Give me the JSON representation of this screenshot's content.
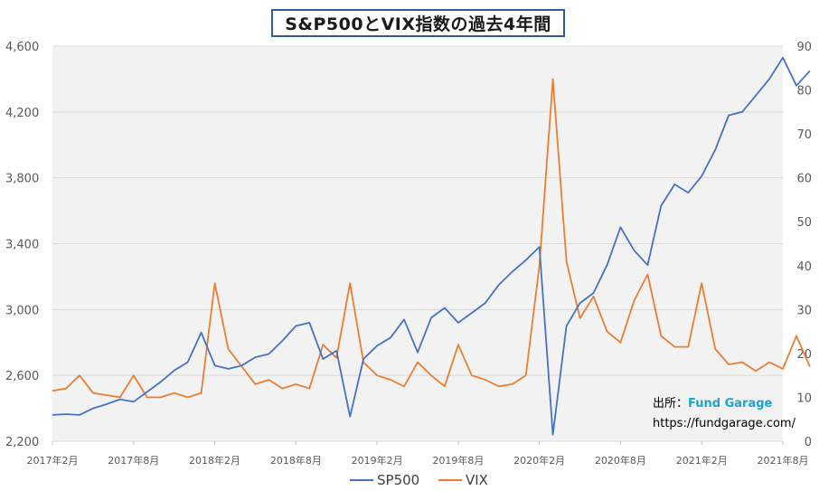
{
  "title": "S&P500とVIX指数の過去4年間",
  "source": {
    "label": "出所：",
    "brand": "Fund Garage",
    "url": "https://fundgarage.com/"
  },
  "colors": {
    "sp500": "#4472c4",
    "vix": "#ed7d31",
    "plot_bg": "#f2f2f2",
    "grid": "#d9d9d9"
  },
  "chart_data": {
    "type": "line",
    "title": "S&P500とVIX指数の過去4年間",
    "x_tick_labels": [
      "2017年2月",
      "2017年8月",
      "2018年2月",
      "2018年8月",
      "2019年2月",
      "2019年8月",
      "2020年2月",
      "2020年8月",
      "2021年2月",
      "2021年8月"
    ],
    "y_left": {
      "ticks": [
        "2,200",
        "2,600",
        "3,000",
        "3,400",
        "3,800",
        "4,200",
        "4,600"
      ],
      "range": [
        2200,
        4600
      ]
    },
    "y_right": {
      "ticks": [
        "0",
        "10",
        "20",
        "30",
        "40",
        "50",
        "60",
        "70",
        "80",
        "90"
      ],
      "range": [
        0,
        90
      ]
    },
    "legend_position": "bottom",
    "grid": true,
    "series": [
      {
        "name": "SP500",
        "axis": "left",
        "points": [
          [
            "2017-02",
            2360
          ],
          [
            "2017-03",
            2365
          ],
          [
            "2017-04",
            2360
          ],
          [
            "2017-05",
            2400
          ],
          [
            "2017-06",
            2425
          ],
          [
            "2017-07",
            2455
          ],
          [
            "2017-08",
            2440
          ],
          [
            "2017-09",
            2500
          ],
          [
            "2017-10",
            2560
          ],
          [
            "2017-11",
            2630
          ],
          [
            "2017-12",
            2680
          ],
          [
            "2018-01",
            2860
          ],
          [
            "2018-02",
            2660
          ],
          [
            "2018-03",
            2640
          ],
          [
            "2018-04",
            2660
          ],
          [
            "2018-05",
            2710
          ],
          [
            "2018-06",
            2730
          ],
          [
            "2018-07",
            2810
          ],
          [
            "2018-08",
            2900
          ],
          [
            "2018-09",
            2920
          ],
          [
            "2018-10",
            2700
          ],
          [
            "2018-11",
            2750
          ],
          [
            "2018-12",
            2350
          ],
          [
            "2019-01",
            2700
          ],
          [
            "2019-02",
            2780
          ],
          [
            "2019-03",
            2830
          ],
          [
            "2019-04",
            2940
          ],
          [
            "2019-05",
            2740
          ],
          [
            "2019-06",
            2950
          ],
          [
            "2019-07",
            3010
          ],
          [
            "2019-08",
            2920
          ],
          [
            "2019-09",
            2980
          ],
          [
            "2019-10",
            3040
          ],
          [
            "2019-11",
            3150
          ],
          [
            "2019-12",
            3230
          ],
          [
            "2020-01",
            3300
          ],
          [
            "2020-02",
            3380
          ],
          [
            "2020-03",
            2240
          ],
          [
            "2020-04",
            2900
          ],
          [
            "2020-05",
            3040
          ],
          [
            "2020-06",
            3100
          ],
          [
            "2020-07",
            3270
          ],
          [
            "2020-08",
            3500
          ],
          [
            "2020-09",
            3360
          ],
          [
            "2020-10",
            3270
          ],
          [
            "2020-11",
            3630
          ],
          [
            "2020-12",
            3760
          ],
          [
            "2021-01",
            3710
          ],
          [
            "2021-02",
            3810
          ],
          [
            "2021-03",
            3970
          ],
          [
            "2021-04",
            4180
          ],
          [
            "2021-05",
            4200
          ],
          [
            "2021-06",
            4300
          ],
          [
            "2021-07",
            4400
          ],
          [
            "2021-08",
            4530
          ],
          [
            "2021-09",
            4360
          ],
          [
            "2021-10",
            4450
          ]
        ]
      },
      {
        "name": "VIX",
        "axis": "right",
        "points": [
          [
            "2017-02",
            11.5
          ],
          [
            "2017-03",
            12
          ],
          [
            "2017-04",
            15
          ],
          [
            "2017-05",
            11
          ],
          [
            "2017-06",
            10.5
          ],
          [
            "2017-07",
            10
          ],
          [
            "2017-08",
            15
          ],
          [
            "2017-09",
            10
          ],
          [
            "2017-10",
            10
          ],
          [
            "2017-11",
            11
          ],
          [
            "2017-12",
            10
          ],
          [
            "2018-01",
            11
          ],
          [
            "2018-02",
            36
          ],
          [
            "2018-03",
            21
          ],
          [
            "2018-04",
            17
          ],
          [
            "2018-05",
            13
          ],
          [
            "2018-06",
            14
          ],
          [
            "2018-07",
            12
          ],
          [
            "2018-08",
            13
          ],
          [
            "2018-09",
            12
          ],
          [
            "2018-10",
            22
          ],
          [
            "2018-11",
            19
          ],
          [
            "2018-12",
            36
          ],
          [
            "2019-01",
            18
          ],
          [
            "2019-02",
            15
          ],
          [
            "2019-03",
            14
          ],
          [
            "2019-04",
            12.5
          ],
          [
            "2019-05",
            18
          ],
          [
            "2019-06",
            15
          ],
          [
            "2019-07",
            12.5
          ],
          [
            "2019-08",
            22
          ],
          [
            "2019-09",
            15
          ],
          [
            "2019-10",
            14
          ],
          [
            "2019-11",
            12.5
          ],
          [
            "2019-12",
            13
          ],
          [
            "2020-01",
            15
          ],
          [
            "2020-02",
            40
          ],
          [
            "2020-03",
            82.5
          ],
          [
            "2020-04",
            41
          ],
          [
            "2020-05",
            28
          ],
          [
            "2020-06",
            33
          ],
          [
            "2020-07",
            25
          ],
          [
            "2020-08",
            22.5
          ],
          [
            "2020-09",
            32
          ],
          [
            "2020-10",
            38
          ],
          [
            "2020-11",
            24
          ],
          [
            "2020-12",
            21.5
          ],
          [
            "2021-01",
            21.5
          ],
          [
            "2021-02",
            36
          ],
          [
            "2021-03",
            21
          ],
          [
            "2021-04",
            17.5
          ],
          [
            "2021-05",
            18
          ],
          [
            "2021-06",
            16
          ],
          [
            "2021-07",
            18
          ],
          [
            "2021-08",
            16.5
          ],
          [
            "2021-09",
            24
          ],
          [
            "2021-10",
            17
          ]
        ]
      }
    ]
  }
}
